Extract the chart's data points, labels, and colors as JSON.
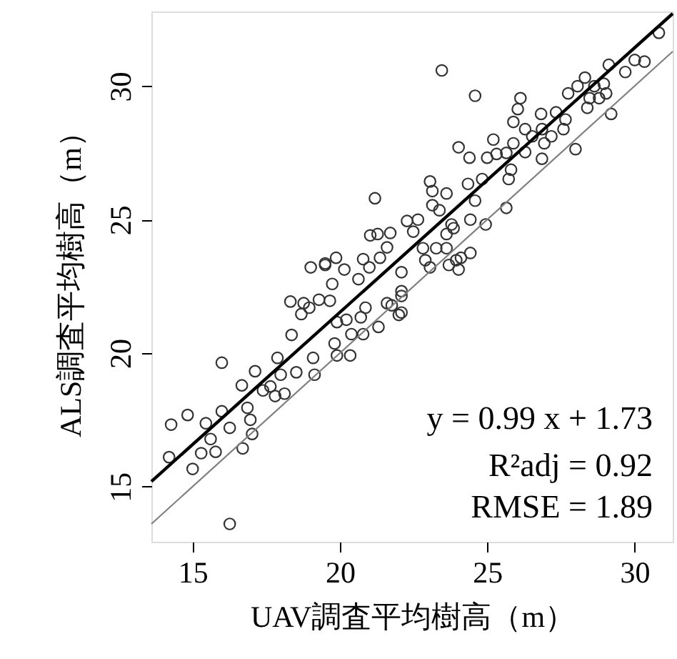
{
  "chart_data": {
    "type": "scatter",
    "xlabel": "UAV調査平均樹高（m）",
    "ylabel": "ALS調査平均樹高（m）",
    "xlim": [
      13.6,
      31.3
    ],
    "ylim": [
      12.93,
      32.8
    ],
    "xticks": [
      15,
      20,
      25,
      30
    ],
    "yticks": [
      15,
      20,
      25,
      30
    ],
    "grid": false,
    "annotations": [
      "y = 0.99 x + 1.73",
      "R²adj = 0.92",
      "RMSE = 1.89"
    ],
    "series": [
      {
        "color": "#333333",
        "marker": "circle",
        "x": [
          16.26,
          14.27,
          14.83,
          14.2,
          15.0,
          15.45,
          15.29,
          15.61,
          15.78,
          15.99,
          15.99,
          16.26,
          16.7,
          16.67,
          16.86,
          17.02,
          16.96,
          17.12,
          17.39,
          17.64,
          17.88,
          17.8,
          17.99,
          18.12,
          18.32,
          18.36,
          18.52,
          18.69,
          18.77,
          18.96,
          19.01,
          19.14,
          19.09,
          19.29,
          19.5,
          19.66,
          19.74,
          19.82,
          19.9,
          19.9,
          20.15,
          20.22,
          20.35,
          20.39,
          20.63,
          20.71,
          20.79,
          20.87,
          21.0,
          21.31,
          21.6,
          21.76,
          22.0,
          22.09,
          22.09,
          21.19,
          21.03,
          21.28,
          21.71,
          22.28,
          21.6,
          19.5,
          19.87,
          20.79,
          21.36,
          23.46,
          24.59,
          30.83,
          30.01,
          30.34,
          29.69,
          29.13,
          28.32,
          28.96,
          29.04,
          28.64,
          28.07,
          27.75,
          28.48,
          28.8,
          28.4,
          29.21,
          27.34,
          27.66,
          26.04,
          25.89,
          26.83,
          26.86,
          26.29,
          26.53,
          27.18,
          27.59,
          25.89,
          25.21,
          26.94,
          28.0,
          24.03,
          24.4,
          25.0,
          25.32,
          25.65,
          26.29,
          26.86,
          25.81,
          25.73,
          23.06,
          23.14,
          23.62,
          24.35,
          24.83,
          24.59,
          25.65,
          23.14,
          23.38,
          23.79,
          24.43,
          22.65,
          22.49,
          23.62,
          23.86,
          22.82,
          23.27,
          23.62,
          22.9,
          23.7,
          24.11,
          24.43,
          24.03,
          24.95,
          26.13,
          22.09,
          22.09,
          23.06,
          23.95
        ],
        "values": [
          13.6,
          17.32,
          17.68,
          16.1,
          15.66,
          17.37,
          16.25,
          16.78,
          16.3,
          17.82,
          19.64,
          17.2,
          16.43,
          18.79,
          17.95,
          16.97,
          17.5,
          19.32,
          18.6,
          18.75,
          19.82,
          18.39,
          19.19,
          18.48,
          21.93,
          20.68,
          19.28,
          21.46,
          21.87,
          21.7,
          23.21,
          19.19,
          19.82,
          22.0,
          23.3,
          21.96,
          22.59,
          20.36,
          21.16,
          19.91,
          23.13,
          21.25,
          19.91,
          20.71,
          22.77,
          21.34,
          20.71,
          21.7,
          23.21,
          20.98,
          21.87,
          21.79,
          21.43,
          23.03,
          22.32,
          25.8,
          24.41,
          24.46,
          24.5,
          24.95,
          23.96,
          23.36,
          23.57,
          23.52,
          23.57,
          30.59,
          29.64,
          32.0,
          30.98,
          30.92,
          30.53,
          30.8,
          30.32,
          30.09,
          29.73,
          30.0,
          30.0,
          29.73,
          29.55,
          29.55,
          29.19,
          28.96,
          29.02,
          28.75,
          29.14,
          28.66,
          28.96,
          28.39,
          28.39,
          28.12,
          28.12,
          28.39,
          27.86,
          28.0,
          27.86,
          27.64,
          27.71,
          27.32,
          27.32,
          27.46,
          27.5,
          27.53,
          27.28,
          26.87,
          26.52,
          26.43,
          26.07,
          25.98,
          26.34,
          26.52,
          25.71,
          25.44,
          25.54,
          25.35,
          24.82,
          25.0,
          25.0,
          24.55,
          24.46,
          24.68,
          23.93,
          23.93,
          23.93,
          23.48,
          23.3,
          23.57,
          23.75,
          23.13,
          24.82,
          29.55,
          22.14,
          21.52,
          23.21,
          23.48
        ]
      },
      {
        "type": "line",
        "color": "#000000",
        "x": [
          13.6,
          31.3
        ],
        "values": [
          15.19,
          32.72
        ]
      },
      {
        "type": "line",
        "color": "#808080",
        "x": [
          13.6,
          31.3
        ],
        "values": [
          13.6,
          31.3
        ]
      }
    ]
  }
}
